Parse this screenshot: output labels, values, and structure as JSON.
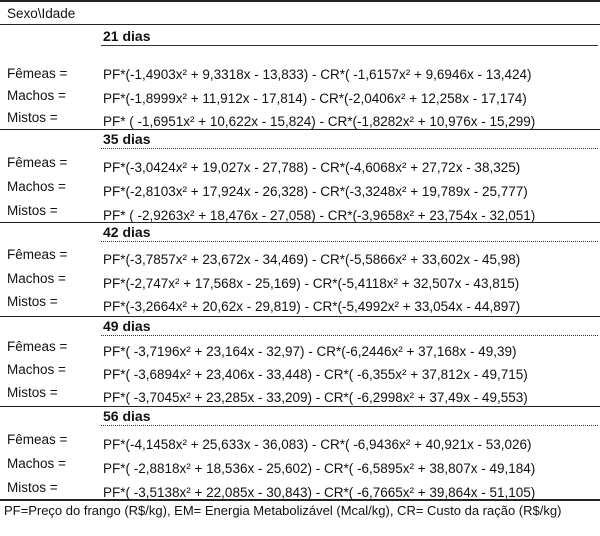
{
  "header": "Sexo\\Idade",
  "sections": [
    {
      "age": "21 dias",
      "rows": [
        {
          "sex": "Fêmeas =",
          "formula": "PF*(-1,4903x² + 9,3318x - 13,833) - CR*( -1,6157x² + 9,6946x - 13,424)"
        },
        {
          "sex": "Machos =",
          "formula": "PF*(-1,8999x² + 11,912x - 17,814) - CR*(-2,0406x² + 12,258x - 17,174)"
        },
        {
          "sex": "Mistos =",
          "formula": "PF* ( -1,6951x² + 10,622x - 15,824) - CR*(-1,8282x² + 10,976x - 15,299)"
        }
      ]
    },
    {
      "age": "35 dias",
      "rows": [
        {
          "sex": "Fêmeas =",
          "formula": "PF*(-3,0424x² + 19,027x - 27,788) - CR*(-4,6068x² + 27,72x - 38,325)"
        },
        {
          "sex": "Machos =",
          "formula": "PF*(-2,8103x² + 17,924x - 26,328) - CR*(-3,3248x² + 19,789x - 25,777)"
        },
        {
          "sex": "Mistos =",
          "formula": "PF* ( -2,9263x² + 18,476x - 27,058) - CR*(-3,9658x² + 23,754x - 32,051)"
        }
      ]
    },
    {
      "age": "42 dias",
      "rows": [
        {
          "sex": "Fêmeas =",
          "formula": "PF*(-3,7857x² + 23,672x - 34,469) - CR*(-5,5866x² + 33,602x - 45,98)"
        },
        {
          "sex": "Machos =",
          "formula": "PF*(-2,747x² + 17,568x - 25,169) - CR*(-5,4118x² + 32,507x - 43,815)"
        },
        {
          "sex": "Mistos =",
          "formula": "PF*(-3,2664x² + 20,62x - 29,819) -   CR*(-5,4992x² + 33,054x - 44,897)"
        }
      ]
    },
    {
      "age": "49 dias",
      "rows": [
        {
          "sex": "Fêmeas =",
          "formula": "PF*( -3,7196x² + 23,164x - 32,97) - CR*(-6,2446x² + 37,168x - 49,39)"
        },
        {
          "sex": "Machos =",
          "formula": "PF*(    -3,6894x² + 23,406x - 33,448) - CR*( -6,355x² + 37,812x - 49,715)"
        },
        {
          "sex": "Mistos =",
          "formula": "PF*( -3,7045x² + 23,285x - 33,209) - CR*( -6,2998x² + 37,49x - 49,553)"
        }
      ]
    },
    {
      "age": "56 dias",
      "rows": [
        {
          "sex": "Fêmeas =",
          "formula": "PF*(-4,1458x² + 25,633x - 36,083) - CR*( -6,9436x² + 40,921x - 53,026)"
        },
        {
          "sex": "Machos =",
          "formula": "PF*( -2,8818x² + 18,536x - 25,602) - CR*( -6,5895x² + 38,807x - 49,184)"
        },
        {
          "sex": "Mistos =",
          "formula": "PF*( -3,5138x² + 22,085x - 30,843) - CR*( -6,7665x² + 39,864x - 51,105)"
        }
      ]
    }
  ],
  "footnote": "PF=Preço do frango (R$/kg), EM= Energia Metabolizável (Mcal/kg), CR= Custo da ração (R$/kg)"
}
